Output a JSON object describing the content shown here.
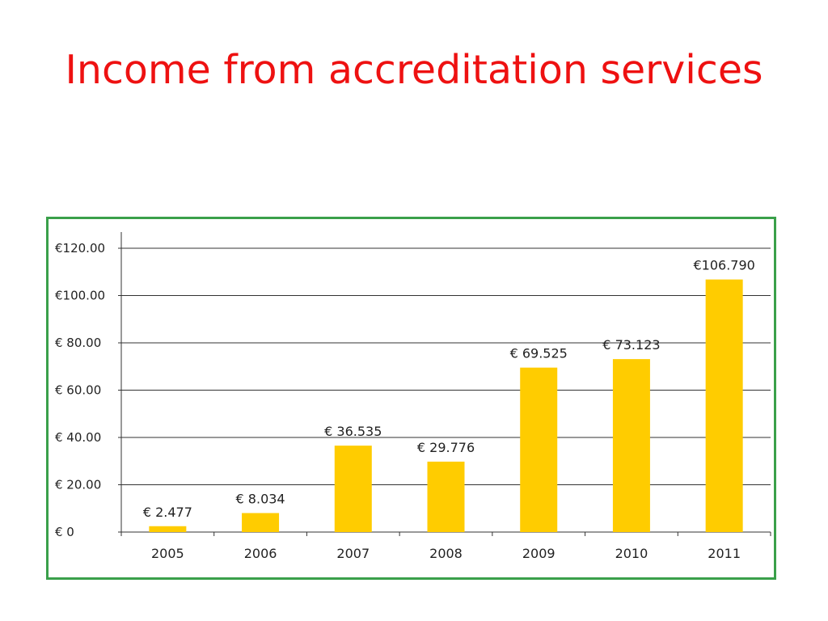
{
  "slide": {
    "title": "Income from accreditation services"
  },
  "chart_data": {
    "type": "bar",
    "categories": [
      "2005",
      "2006",
      "2007",
      "2008",
      "2009",
      "2010",
      "2011"
    ],
    "values": [
      2.477,
      8.034,
      36.535,
      29.776,
      69.525,
      73.123,
      106.79
    ],
    "data_labels": [
      "€ 2.477",
      "€ 8.034",
      "€ 36.535",
      "€ 29.776",
      "€ 69.525",
      "€ 73.123",
      "€106.790"
    ],
    "y_ticks": [
      0,
      20,
      40,
      60,
      80,
      100,
      120
    ],
    "y_tick_labels": [
      "€ 0",
      "€ 20.00",
      "€ 40.00",
      "€ 60.00",
      "€ 80.00",
      "€100.00",
      "€120.00"
    ],
    "ylim": [
      0,
      120
    ],
    "grid": true,
    "bar_color": "#ffcc00",
    "frame_color": "#3aa04a",
    "title": "",
    "xlabel": "",
    "ylabel": ""
  }
}
